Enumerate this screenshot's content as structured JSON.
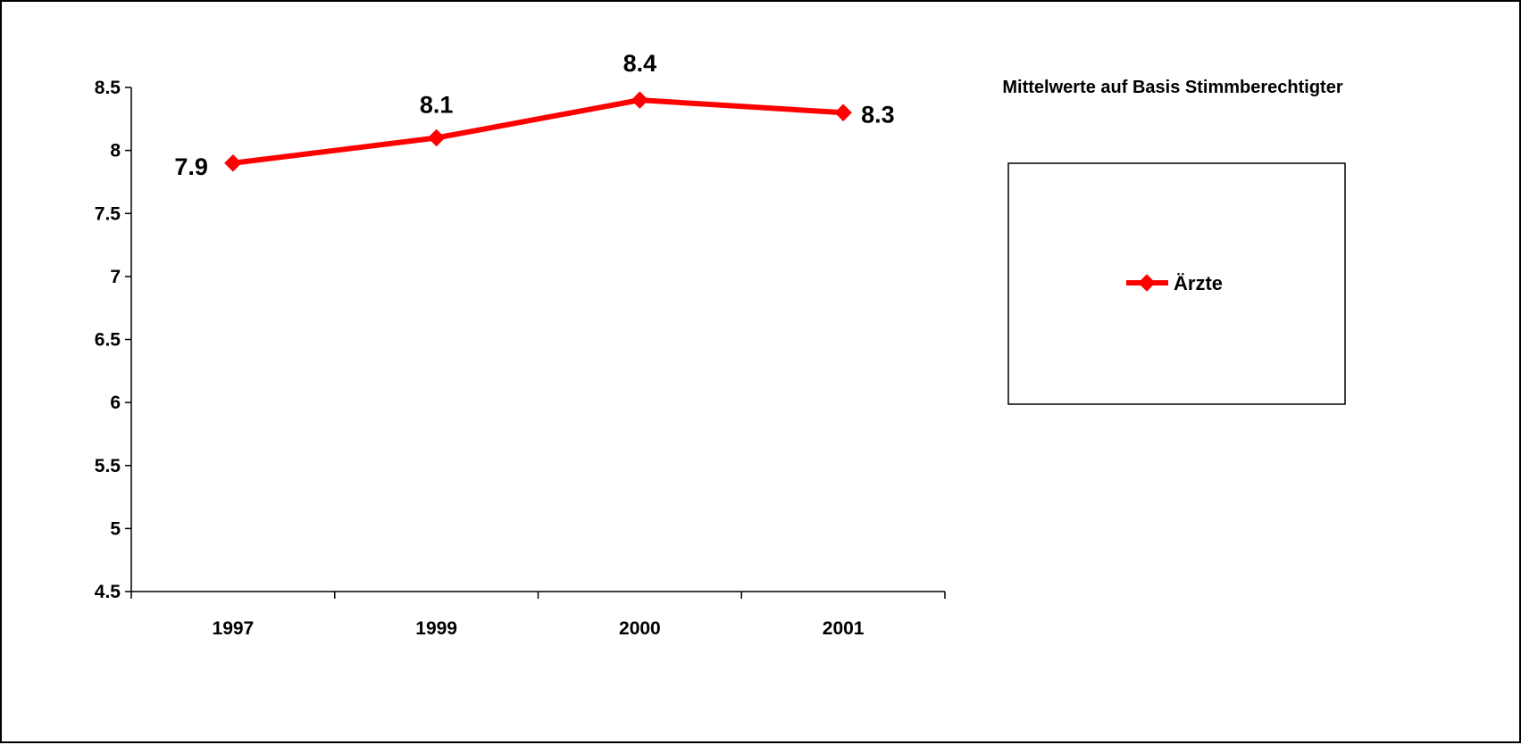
{
  "chart_data": {
    "type": "line",
    "categories": [
      "1997",
      "1999",
      "2000",
      "2001"
    ],
    "series": [
      {
        "name": "Ärzte",
        "values": [
          7.9,
          8.1,
          8.4,
          8.3
        ],
        "data_labels": [
          "7.9",
          "8.1",
          "8.4",
          "8.3"
        ],
        "color": "#ff0000",
        "marker": "diamond"
      }
    ],
    "y_ticks": [
      "4.5",
      "5",
      "5.5",
      "6",
      "6.5",
      "7",
      "7.5",
      "8",
      "8.5"
    ],
    "ylim": [
      4.5,
      8.5
    ],
    "legend_title": "Mittelwerte auf Basis Stimmberechtigter",
    "legend_position": "right",
    "grid": false,
    "title": "",
    "xlabel": "",
    "ylabel": ""
  }
}
